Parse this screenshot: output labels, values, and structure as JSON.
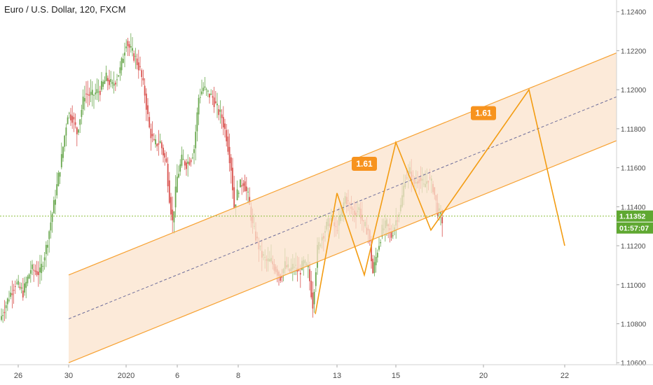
{
  "header": {
    "title": "Euro / U.S. Dollar, 120, FXCM"
  },
  "colors": {
    "up": "#6aa84f",
    "down": "#d9534f",
    "channel_line": "#f7a233",
    "channel_fill": "#fbe3cc",
    "zigzag": "#f39c12",
    "badge": "#f7931e",
    "price_line": "#8bbf3f",
    "tag": "#5fa831"
  },
  "price_axis": {
    "ticks": [
      "1.12400",
      "1.12200",
      "1.12000",
      "1.11800",
      "1.11600",
      "1.11400",
      "1.11200",
      "1.11000",
      "1.10800",
      "1.10600"
    ],
    "current_price": "1.11352",
    "countdown": "01:57:07"
  },
  "time_axis": {
    "ticks": [
      "26",
      "30",
      "2020",
      "6",
      "8",
      "13",
      "15",
      "20",
      "22"
    ]
  },
  "annotations": {
    "fib_label_1": "1.61",
    "fib_label_2": "1.61"
  },
  "chart_data": {
    "type": "candlestick",
    "title": "Euro / U.S. Dollar, 120, FXCM",
    "ylim": [
      1.1059,
      1.1246
    ],
    "y_ticks": [
      1.124,
      1.122,
      1.12,
      1.118,
      1.116,
      1.114,
      1.112,
      1.11,
      1.108,
      1.106
    ],
    "x_ticks": [
      "26",
      "30",
      "2020",
      "6",
      "8",
      "13",
      "15",
      "20",
      "22"
    ],
    "current_price": 1.11352,
    "anchors": [
      [
        0,
        1.1082
      ],
      [
        5,
        1.1092
      ],
      [
        10,
        1.1101
      ],
      [
        15,
        1.1096
      ],
      [
        20,
        1.1108
      ],
      [
        26,
        1.1106
      ],
      [
        30,
        1.1119
      ],
      [
        35,
        1.1141
      ],
      [
        40,
        1.1165
      ],
      [
        44,
        1.1188
      ],
      [
        47,
        1.1186
      ],
      [
        50,
        1.1178
      ],
      [
        55,
        1.1198
      ],
      [
        60,
        1.1197
      ],
      [
        65,
        1.12
      ],
      [
        69,
        1.1206
      ],
      [
        73,
        1.1202
      ],
      [
        78,
        1.121
      ],
      [
        82,
        1.1225
      ],
      [
        85,
        1.122
      ],
      [
        88,
        1.1216
      ],
      [
        91,
        1.121
      ],
      [
        94,
        1.1198
      ],
      [
        97,
        1.118
      ],
      [
        100,
        1.1172
      ],
      [
        104,
        1.1173
      ],
      [
        108,
        1.1162
      ],
      [
        110,
        1.1145
      ],
      [
        112,
        1.1132
      ],
      [
        115,
        1.1155
      ],
      [
        118,
        1.1164
      ],
      [
        121,
        1.1162
      ],
      [
        124,
        1.1165
      ],
      [
        126,
        1.117
      ],
      [
        129,
        1.1196
      ],
      [
        132,
        1.1201
      ],
      [
        135,
        1.1198
      ],
      [
        138,
        1.1196
      ],
      [
        141,
        1.119
      ],
      [
        144,
        1.1186
      ],
      [
        147,
        1.1176
      ],
      [
        150,
        1.116
      ],
      [
        152,
        1.114
      ],
      [
        155,
        1.115
      ],
      [
        158,
        1.1153
      ],
      [
        161,
        1.1145
      ],
      [
        164,
        1.113
      ],
      [
        167,
        1.1122
      ],
      [
        170,
        1.1115
      ],
      [
        173,
        1.1112
      ],
      [
        176,
        1.1112
      ],
      [
        179,
        1.1108
      ],
      [
        182,
        1.1104
      ],
      [
        185,
        1.111
      ],
      [
        188,
        1.1107
      ],
      [
        191,
        1.111
      ],
      [
        194,
        1.1106
      ],
      [
        197,
        1.1111
      ],
      [
        200,
        1.1108
      ],
      [
        203,
        1.109
      ],
      [
        206,
        1.1118
      ],
      [
        209,
        1.1125
      ],
      [
        212,
        1.113
      ],
      [
        215,
        1.1134
      ],
      [
        218,
        1.1128
      ],
      [
        221,
        1.1135
      ],
      [
        224,
        1.1145
      ],
      [
        227,
        1.114
      ],
      [
        230,
        1.1137
      ],
      [
        233,
        1.1139
      ],
      [
        236,
        1.113
      ],
      [
        239,
        1.1128
      ],
      [
        242,
        1.1106
      ],
      [
        245,
        1.1118
      ],
      [
        248,
        1.1128
      ],
      [
        251,
        1.1131
      ],
      [
        254,
        1.1125
      ],
      [
        257,
        1.1133
      ],
      [
        260,
        1.114
      ],
      [
        263,
        1.1155
      ],
      [
        266,
        1.1158
      ],
      [
        269,
        1.1152
      ],
      [
        272,
        1.1155
      ],
      [
        275,
        1.115
      ],
      [
        278,
        1.1155
      ],
      [
        281,
        1.115
      ],
      [
        284,
        1.1138
      ],
      [
        287,
        1.1133
      ]
    ],
    "channel": {
      "base_start": {
        "x": "Dec 30",
        "y": 1.106
      },
      "base_end": {
        "x": "Jan 15",
        "y": 1.1128
      },
      "offset": 0.0045,
      "midline": "dashed"
    },
    "zigzag": [
      [
        "Jan 12",
        1.1085
      ],
      [
        "Jan 13",
        1.1147
      ],
      [
        "Jan 14",
        1.1105
      ],
      [
        "Jan 15",
        1.1173
      ],
      [
        "Jan 16",
        1.1128
      ],
      [
        "Jan 21",
        1.12
      ],
      [
        "Jan 22",
        1.112
      ]
    ],
    "fib_labels": [
      {
        "text": "1.61",
        "x": "Jan 14",
        "y": 1.1162
      },
      {
        "text": "1.61",
        "x": "Jan 19",
        "y": 1.1188
      }
    ]
  }
}
